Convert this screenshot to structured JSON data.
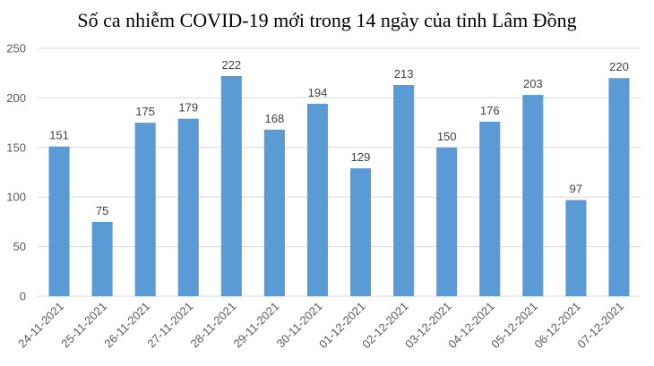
{
  "chart_data": {
    "type": "bar",
    "title": "Số ca nhiễm COVID-19 mới trong 14 ngày của tỉnh Lâm Đồng",
    "categories": [
      "24-11-2021",
      "25-11-2021",
      "26-11-2021",
      "27-11-2021",
      "28-11-2021",
      "29-11-2021",
      "30-11-2021",
      "01-12-2021",
      "02-12-2021",
      "03-12-2021",
      "04-12-2021",
      "05-12-2021",
      "06-12-2021",
      "07-12-2021"
    ],
    "values": [
      151,
      75,
      175,
      179,
      222,
      168,
      194,
      129,
      213,
      150,
      176,
      203,
      97,
      220
    ],
    "xlabel": "",
    "ylabel": "",
    "ylim": [
      0,
      250
    ],
    "yticks": [
      0,
      50,
      100,
      150,
      200,
      250
    ],
    "grid": true,
    "data_labels": true,
    "bar_color": "#5b9bd5",
    "grid_color": "#d9d9d9"
  }
}
